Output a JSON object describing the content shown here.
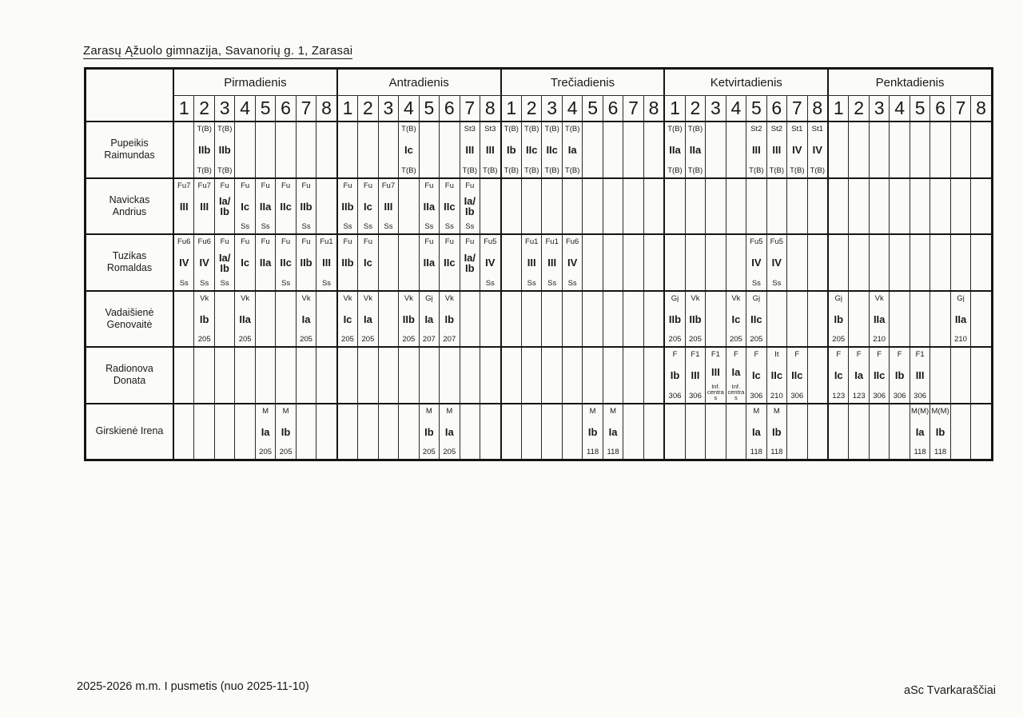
{
  "page": {
    "paper_color": "#fbfbf8",
    "ink_color": "#1a1a1a"
  },
  "header": {
    "title": "Zarasų Ąžuolo gimnazija, Savanorių g. 1, Zarasai"
  },
  "timetable": {
    "days": [
      "Pirmadienis",
      "Antradienis",
      "Trečiadienis",
      "Ketvirtadienis",
      "Penktadienis"
    ],
    "periods": [
      "1",
      "2",
      "3",
      "4",
      "5",
      "6",
      "7",
      "8"
    ],
    "teachers": [
      {
        "name": "Pupeikis Raimundas",
        "lessons": {
          "Pirmadienis": {
            "2": {
              "sub": "T(B)",
              "cls": "IIb",
              "room": "T(B)"
            },
            "3": {
              "sub": "T(B)",
              "cls": "IIb",
              "room": "T(B)"
            }
          },
          "Antradienis": {
            "4": {
              "sub": "T(B)",
              "cls": "Ic",
              "room": "T(B)"
            },
            "7": {
              "sub": "St3",
              "cls": "III",
              "room": "T(B)"
            },
            "8": {
              "sub": "St3",
              "cls": "III",
              "room": "T(B)"
            }
          },
          "Trečiadienis": {
            "1": {
              "sub": "T(B)",
              "cls": "Ib",
              "room": "T(B)"
            },
            "2": {
              "sub": "T(B)",
              "cls": "IIc",
              "room": "T(B)"
            },
            "3": {
              "sub": "T(B)",
              "cls": "IIc",
              "room": "T(B)"
            },
            "4": {
              "sub": "T(B)",
              "cls": "Ia",
              "room": "T(B)"
            }
          },
          "Ketvirtadienis": {
            "1": {
              "sub": "T(B)",
              "cls": "IIa",
              "room": "T(B)"
            },
            "2": {
              "sub": "T(B)",
              "cls": "IIa",
              "room": "T(B)"
            },
            "5": {
              "sub": "St2",
              "cls": "III",
              "room": "T(B)"
            },
            "6": {
              "sub": "St2",
              "cls": "III",
              "room": "T(B)"
            },
            "7": {
              "sub": "St1",
              "cls": "IV",
              "room": "T(B)"
            },
            "8": {
              "sub": "St1",
              "cls": "IV",
              "room": "T(B)"
            }
          }
        }
      },
      {
        "name": "Navickas Andrius",
        "lessons": {
          "Pirmadienis": {
            "1": {
              "sub": "Fu7",
              "cls": "III",
              "room": ""
            },
            "2": {
              "sub": "Fu7",
              "cls": "III",
              "room": ""
            },
            "3": {
              "sub": "Fu",
              "cls": "Ia/Ib",
              "room": ""
            },
            "4": {
              "sub": "Fu",
              "cls": "Ic",
              "room": "Ss"
            },
            "5": {
              "sub": "Fu",
              "cls": "IIa",
              "room": "Ss"
            },
            "6": {
              "sub": "Fu",
              "cls": "IIc",
              "room": ""
            },
            "7": {
              "sub": "Fu",
              "cls": "IIb",
              "room": "Ss"
            }
          },
          "Antradienis": {
            "1": {
              "sub": "Fu",
              "cls": "IIb",
              "room": "Ss"
            },
            "2": {
              "sub": "Fu",
              "cls": "Ic",
              "room": "Ss"
            },
            "3": {
              "sub": "Fu7",
              "cls": "III",
              "room": "Ss"
            },
            "5": {
              "sub": "Fu",
              "cls": "IIa",
              "room": "Ss"
            },
            "6": {
              "sub": "Fu",
              "cls": "IIc",
              "room": "Ss"
            },
            "7": {
              "sub": "Fu",
              "cls": "Ia/Ib",
              "room": "Ss"
            }
          }
        }
      },
      {
        "name": "Tuzikas Romaldas",
        "lessons": {
          "Pirmadienis": {
            "1": {
              "sub": "Fu6",
              "cls": "IV",
              "room": "Ss"
            },
            "2": {
              "sub": "Fu6",
              "cls": "IV",
              "room": "Ss"
            },
            "3": {
              "sub": "Fu",
              "cls": "Ia/Ib",
              "room": "Ss"
            },
            "4": {
              "sub": "Fu",
              "cls": "Ic",
              "room": ""
            },
            "5": {
              "sub": "Fu",
              "cls": "IIa",
              "room": ""
            },
            "6": {
              "sub": "Fu",
              "cls": "IIc",
              "room": "Ss"
            },
            "7": {
              "sub": "Fu",
              "cls": "IIb",
              "room": ""
            },
            "8": {
              "sub": "Fu1",
              "cls": "III",
              "room": "Ss"
            }
          },
          "Antradienis": {
            "1": {
              "sub": "Fu",
              "cls": "IIb",
              "room": ""
            },
            "2": {
              "sub": "Fu",
              "cls": "Ic",
              "room": ""
            },
            "5": {
              "sub": "Fu",
              "cls": "IIa",
              "room": ""
            },
            "6": {
              "sub": "Fu",
              "cls": "IIc",
              "room": ""
            },
            "7": {
              "sub": "Fu",
              "cls": "Ia/Ib",
              "room": ""
            },
            "8": {
              "sub": "Fu5",
              "cls": "IV",
              "room": "Ss"
            }
          },
          "Trečiadienis": {
            "2": {
              "sub": "Fu1",
              "cls": "III",
              "room": "Ss"
            },
            "3": {
              "sub": "Fu1",
              "cls": "III",
              "room": "Ss"
            },
            "4": {
              "sub": "Fu6",
              "cls": "IV",
              "room": "Ss"
            }
          },
          "Ketvirtadienis": {
            "5": {
              "sub": "Fu5",
              "cls": "IV",
              "room": "Ss"
            },
            "6": {
              "sub": "Fu5",
              "cls": "IV",
              "room": "Ss"
            }
          }
        }
      },
      {
        "name": "Vadaišienė Genovaitė",
        "lessons": {
          "Pirmadienis": {
            "2": {
              "sub": "Vk",
              "cls": "Ib",
              "room": "205"
            },
            "4": {
              "sub": "Vk",
              "cls": "IIa",
              "room": "205"
            },
            "7": {
              "sub": "Vk",
              "cls": "Ia",
              "room": "205"
            }
          },
          "Antradienis": {
            "1": {
              "sub": "Vk",
              "cls": "Ic",
              "room": "205"
            },
            "2": {
              "sub": "Vk",
              "cls": "Ia",
              "room": "205"
            },
            "4": {
              "sub": "Vk",
              "cls": "IIb",
              "room": "205"
            },
            "5": {
              "sub": "Gį",
              "cls": "Ia",
              "room": "207"
            },
            "6": {
              "sub": "Vk",
              "cls": "Ib",
              "room": "207"
            }
          },
          "Ketvirtadienis": {
            "1": {
              "sub": "Gį",
              "cls": "IIb",
              "room": "205"
            },
            "2": {
              "sub": "Vk",
              "cls": "IIb",
              "room": "205"
            },
            "4": {
              "sub": "Vk",
              "cls": "Ic",
              "room": "205"
            },
            "5": {
              "sub": "Gį",
              "cls": "IIc",
              "room": "205"
            }
          },
          "Penktadienis": {
            "1": {
              "sub": "Gį",
              "cls": "Ib",
              "room": "205"
            },
            "3": {
              "sub": "Vk",
              "cls": "IIa",
              "room": "210"
            },
            "7": {
              "sub": "Gį",
              "cls": "IIa",
              "room": "210"
            }
          }
        }
      },
      {
        "name": "Radionova Donata",
        "lessons": {
          "Ketvirtadienis": {
            "1": {
              "sub": "F",
              "cls": "Ib",
              "room": "306"
            },
            "2": {
              "sub": "F1",
              "cls": "III",
              "room": "306"
            },
            "3": {
              "sub": "F1",
              "cls": "III",
              "room": "Inf. centras"
            },
            "4": {
              "sub": "F",
              "cls": "Ia",
              "room": "Inf. centras"
            },
            "5": {
              "sub": "F",
              "cls": "Ic",
              "room": "306"
            },
            "6": {
              "sub": "It",
              "cls": "IIc",
              "room": "210"
            },
            "7": {
              "sub": "F",
              "cls": "IIc",
              "room": "306"
            }
          },
          "Penktadienis": {
            "1": {
              "sub": "F",
              "cls": "Ic",
              "room": "123"
            },
            "2": {
              "sub": "F",
              "cls": "Ia",
              "room": "123"
            },
            "3": {
              "sub": "F",
              "cls": "IIc",
              "room": "306"
            },
            "4": {
              "sub": "F",
              "cls": "Ib",
              "room": "306"
            },
            "5": {
              "sub": "F1",
              "cls": "III",
              "room": "306"
            }
          }
        }
      },
      {
        "name": "Girskienė Irena",
        "lessons": {
          "Pirmadienis": {
            "5": {
              "sub": "M",
              "cls": "Ia",
              "room": "205"
            },
            "6": {
              "sub": "M",
              "cls": "Ib",
              "room": "205"
            }
          },
          "Antradienis": {
            "5": {
              "sub": "M",
              "cls": "Ib",
              "room": "205"
            },
            "6": {
              "sub": "M",
              "cls": "Ia",
              "room": "205"
            }
          },
          "Trečiadienis": {
            "5": {
              "sub": "M",
              "cls": "Ib",
              "room": "118"
            },
            "6": {
              "sub": "M",
              "cls": "Ia",
              "room": "118"
            }
          },
          "Ketvirtadienis": {
            "5": {
              "sub": "M",
              "cls": "Ia",
              "room": "118"
            },
            "6": {
              "sub": "M",
              "cls": "Ib",
              "room": "118"
            }
          },
          "Penktadienis": {
            "5": {
              "sub": "M(M)",
              "cls": "Ia",
              "room": "118"
            },
            "6": {
              "sub": "M(M)",
              "cls": "Ib",
              "room": "118"
            }
          }
        }
      }
    ]
  },
  "footer": {
    "left": "2025-2026 m.m. I pusmetis (nuo 2025-11-10)",
    "right": "aSc Tvarkaraščiai"
  }
}
